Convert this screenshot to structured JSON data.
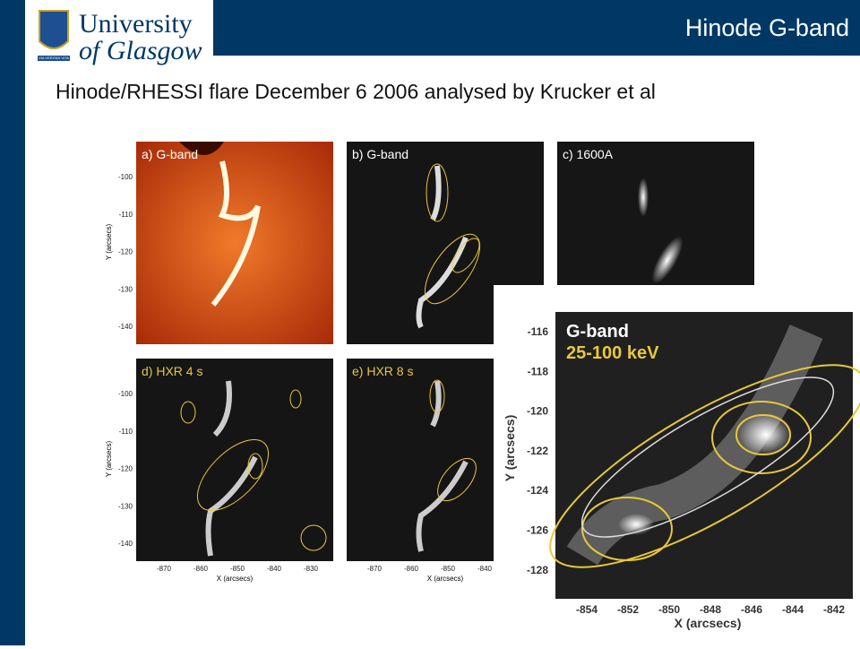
{
  "header": {
    "logo": {
      "line1": "University",
      "line2": "of Glasgow",
      "motto": "VIA VERITAS VITA"
    },
    "title": "Hinode G-band"
  },
  "subtitle": "Hinode/RHESSI flare December 6 2006 analysed by Krucker et al",
  "figure": {
    "panels": [
      {
        "label": "a) G-band"
      },
      {
        "label": "b) G-band"
      },
      {
        "label": "c) 1600A"
      },
      {
        "label": "d) HXR 4 s"
      },
      {
        "label": "e) HXR 8 s"
      }
    ],
    "y_label": "Y (arcsecs)",
    "x_label": "X (arcsecs)",
    "y_ticks": [
      "-100",
      "-110",
      "-120",
      "-130",
      "-140"
    ],
    "x_ticks_d": [
      "-870",
      "-860",
      "-850",
      "-840",
      "-830"
    ],
    "x_ticks_e": [
      "-870",
      "-860",
      "-850",
      "-840"
    ],
    "inset": {
      "label1": "G-band",
      "label2": "25-100 keV",
      "y_label": "Y (arcsecs)",
      "x_label": "X (arcsecs)",
      "y_ticks": [
        "-116",
        "-118",
        "-120",
        "-122",
        "-124",
        "-126",
        "-128"
      ],
      "x_ticks": [
        "-854",
        "-852",
        "-850",
        "-848",
        "-846",
        "-844",
        "-842"
      ]
    }
  }
}
